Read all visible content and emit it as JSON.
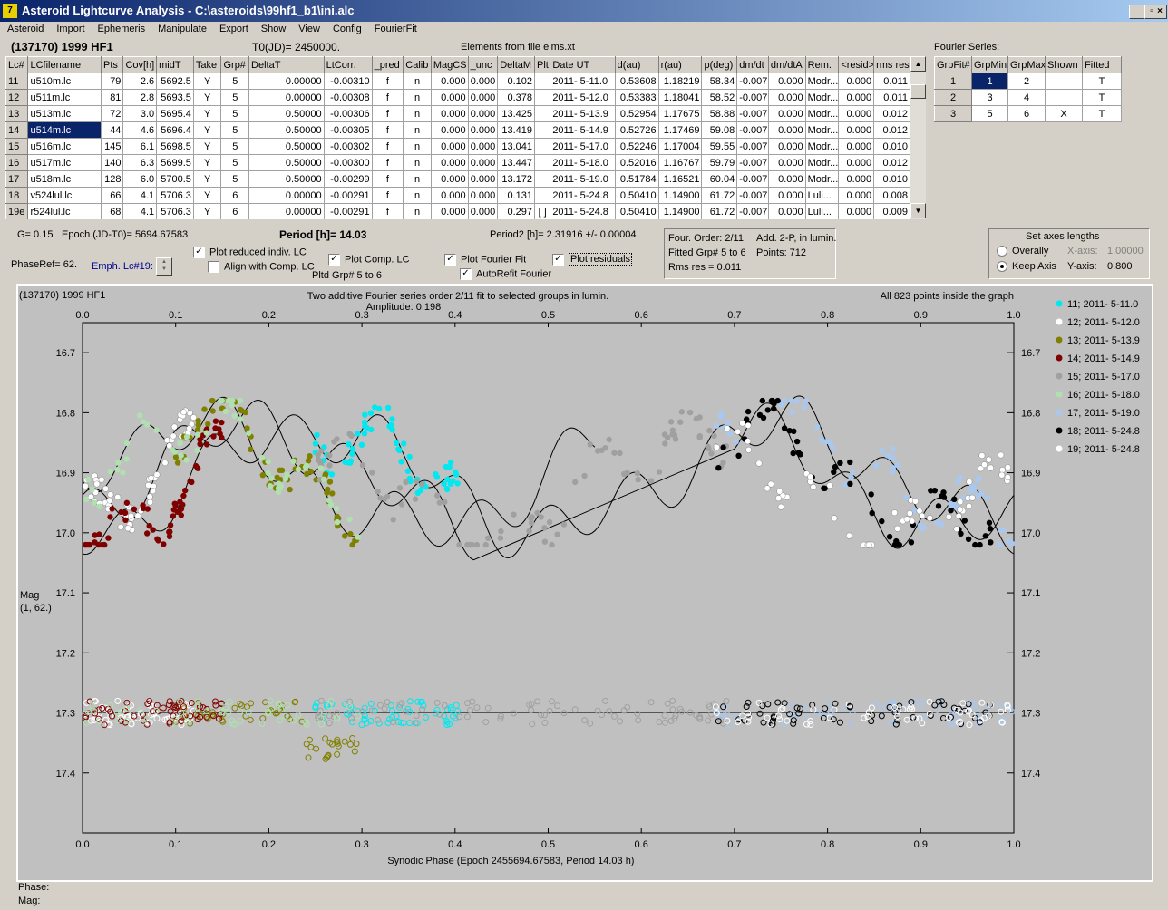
{
  "window": {
    "title": "Asteroid Lightcurve Analysis - C:\\asteroids\\99hf1_b1\\ini.alc",
    "icon": "app-icon",
    "min_label": "_",
    "max_label": "▫",
    "close_label": "×"
  },
  "menu": [
    "Asteroid",
    "Import",
    "Ephemeris",
    "Manipulate",
    "Export",
    "Show",
    "View",
    "Config",
    "FourierFit"
  ],
  "header": {
    "object": "(137170) 1999 HF1",
    "t0": "T0(JD)= 2450000.",
    "elements": "Elements from file elms.xt",
    "fourier_series_label": "Fourier Series:"
  },
  "lc_table": {
    "headers": [
      "Lc#",
      "LCfilename",
      "Pts",
      "Cov[h]",
      "midT",
      "Take",
      "Grp#",
      "DeltaT",
      "LtCorr.",
      "_pred",
      "Calib",
      "MagCS",
      "_unc",
      "DeltaM",
      "Plt",
      "Date UT",
      "d(au)",
      "r(au)",
      "p(deg)",
      "dm/dt",
      "dm/dtA",
      "Rem.",
      "<resid>",
      "rms res"
    ],
    "rows": [
      [
        "11",
        "u510m.lc",
        "79",
        "2.6",
        "5692.5",
        "Y",
        "5",
        "0.00000",
        "-0.00310",
        "f",
        "n",
        "0.000",
        "0.000",
        "0.102",
        "",
        "2011- 5-11.0",
        "0.53608",
        "1.18219",
        "58.34",
        "-0.007",
        "0.000",
        "Modr...",
        "0.000",
        "0.011"
      ],
      [
        "12",
        "u511m.lc",
        "81",
        "2.8",
        "5693.5",
        "Y",
        "5",
        "0.00000",
        "-0.00308",
        "f",
        "n",
        "0.000",
        "0.000",
        "0.378",
        "",
        "2011- 5-12.0",
        "0.53383",
        "1.18041",
        "58.52",
        "-0.007",
        "0.000",
        "Modr...",
        "0.000",
        "0.011"
      ],
      [
        "13",
        "u513m.lc",
        "72",
        "3.0",
        "5695.4",
        "Y",
        "5",
        "0.50000",
        "-0.00306",
        "f",
        "n",
        "0.000",
        "0.000",
        "13.425",
        "",
        "2011- 5-13.9",
        "0.52954",
        "1.17675",
        "58.88",
        "-0.007",
        "0.000",
        "Modr...",
        "0.000",
        "0.012"
      ],
      [
        "14",
        "u514m.lc",
        "44",
        "4.6",
        "5696.4",
        "Y",
        "5",
        "0.50000",
        "-0.00305",
        "f",
        "n",
        "0.000",
        "0.000",
        "13.419",
        "",
        "2011- 5-14.9",
        "0.52726",
        "1.17469",
        "59.08",
        "-0.007",
        "0.000",
        "Modr...",
        "0.000",
        "0.012"
      ],
      [
        "15",
        "u516m.lc",
        "145",
        "6.1",
        "5698.5",
        "Y",
        "5",
        "0.50000",
        "-0.00302",
        "f",
        "n",
        "0.000",
        "0.000",
        "13.041",
        "",
        "2011- 5-17.0",
        "0.52246",
        "1.17004",
        "59.55",
        "-0.007",
        "0.000",
        "Modr...",
        "0.000",
        "0.010"
      ],
      [
        "16",
        "u517m.lc",
        "140",
        "6.3",
        "5699.5",
        "Y",
        "5",
        "0.50000",
        "-0.00300",
        "f",
        "n",
        "0.000",
        "0.000",
        "13.447",
        "",
        "2011- 5-18.0",
        "0.52016",
        "1.16767",
        "59.79",
        "-0.007",
        "0.000",
        "Modr...",
        "0.000",
        "0.012"
      ],
      [
        "17",
        "u518m.lc",
        "128",
        "6.0",
        "5700.5",
        "Y",
        "5",
        "0.50000",
        "-0.00299",
        "f",
        "n",
        "0.000",
        "0.000",
        "13.172",
        "",
        "2011- 5-19.0",
        "0.51784",
        "1.16521",
        "60.04",
        "-0.007",
        "0.000",
        "Modr...",
        "0.000",
        "0.010"
      ],
      [
        "18",
        "v524lul.lc",
        "66",
        "4.1",
        "5706.3",
        "Y",
        "6",
        "0.00000",
        "-0.00291",
        "f",
        "n",
        "0.000",
        "0.000",
        "0.131",
        "",
        "2011- 5-24.8",
        "0.50410",
        "1.14900",
        "61.72",
        "-0.007",
        "0.000",
        "Luli...",
        "0.000",
        "0.008"
      ],
      [
        "19e",
        "r524lul.lc",
        "68",
        "4.1",
        "5706.3",
        "Y",
        "6",
        "0.00000",
        "-0.00291",
        "f",
        "n",
        "0.000",
        "0.000",
        "0.297",
        "[ ]",
        "2011- 5-24.8",
        "0.50410",
        "1.14900",
        "61.72",
        "-0.007",
        "0.000",
        "Luli...",
        "0.000",
        "0.009"
      ]
    ],
    "selected_row": 3
  },
  "fourier_table": {
    "headers": [
      "GrpFit#",
      "GrpMin",
      "GrpMax",
      "Shown",
      "Fitted"
    ],
    "rows": [
      [
        "1",
        "1",
        "2",
        "",
        "T"
      ],
      [
        "2",
        "3",
        "4",
        "",
        "T"
      ],
      [
        "3",
        "5",
        "6",
        "X",
        "T"
      ]
    ]
  },
  "controls": {
    "g": "G= 0.15",
    "epoch": "Epoch (JD-T0)= 5694.67583",
    "period": "Period [h]= 14.03",
    "period2": "Period2 [h]= 2.31916 +/- 0.00004",
    "phaseref": "PhaseRef= 62.",
    "emph": "Emph. Lc#19:",
    "plot_reduced": "Plot reduced indiv. LC",
    "align_comp": "Align with Comp. LC",
    "plot_comp": "Plot Comp. LC",
    "pltd_grp": "Pltd Grp#  5   to   6",
    "plot_fourier": "Plot Fourier Fit",
    "autorefit": "AutoRefit Fourier",
    "plot_residuals": "Plot residuals",
    "check_mark": "✓",
    "spin_up": "▲",
    "spin_down": "▼",
    "scroll_up": "▲",
    "scroll_down": "▼"
  },
  "fit_info": {
    "order": "Four. Order:  2/11",
    "add": "Add. 2-P, in lumin.",
    "fitted": "Fitted Grp# 5 to 6",
    "points": "Points: 712",
    "rms": "Rms res     = 0.011"
  },
  "axes_box": {
    "title": "Set axes lengths",
    "overally": "Overally",
    "keep_axis": "Keep Axis",
    "x_label": "X-axis:",
    "x_value": "1.00000",
    "y_label": "Y-axis:",
    "y_value": "0.800"
  },
  "footer": {
    "phase": "Phase:",
    "mag": "Mag:"
  },
  "chart_data": {
    "type": "scatter",
    "title": "Two additive Fourier series order 2/11 fit to selected groups in lumin.",
    "subtitle": "Amplitude: 0.198",
    "top_left": "(137170) 1999 HF1",
    "top_right": "All 823 points inside the graph",
    "xlabel": "Synodic Phase (Epoch 2455694.67583, Period 14.03 h)",
    "ylabel": [
      "Mag",
      "(1, 62.)"
    ],
    "xlim": [
      0,
      1
    ],
    "ylim": [
      17.5,
      16.65
    ],
    "xticks": [
      "0.0",
      "0.1",
      "0.2",
      "0.3",
      "0.4",
      "0.5",
      "0.6",
      "0.7",
      "0.8",
      "0.9",
      "1.0"
    ],
    "yticks": [
      "16.7",
      "16.8",
      "16.9",
      "17.0",
      "17.1",
      "17.2",
      "17.3",
      "17.4"
    ],
    "residual_baseline": 17.3,
    "background": "#c0c0c0",
    "series": [
      {
        "name": "11; 2011- 5-11.0",
        "color": "#00e8f0",
        "x_range": [
          0.25,
          0.41
        ]
      },
      {
        "name": "12; 2011- 5-12.0",
        "color": "#ffffff",
        "x_range": [
          0.0,
          0.12
        ]
      },
      {
        "name": "13; 2011- 5-13.9",
        "color": "#808000",
        "x_range": [
          0.1,
          0.3
        ]
      },
      {
        "name": "14; 2011- 5-14.9",
        "color": "#800000",
        "x_range": [
          0.0,
          0.15
        ]
      },
      {
        "name": "15; 2011- 5-17.0",
        "color": "#a0a0a0",
        "x_range": [
          0.25,
          0.7
        ]
      },
      {
        "name": "16; 2011- 5-18.0",
        "color": "#b0e0b0",
        "x_range": [
          0.0,
          0.3
        ]
      },
      {
        "name": "17; 2011- 5-19.0",
        "color": "#a8c8f0",
        "x_range": [
          0.68,
          1.0
        ]
      },
      {
        "name": "18; 2011- 5-24.8",
        "color": "#000000",
        "x_range": [
          0.68,
          0.98
        ]
      },
      {
        "name": "19; 2011- 5-24.8",
        "color": "#ffffff",
        "x_range": [
          0.68,
          1.0
        ]
      }
    ]
  }
}
